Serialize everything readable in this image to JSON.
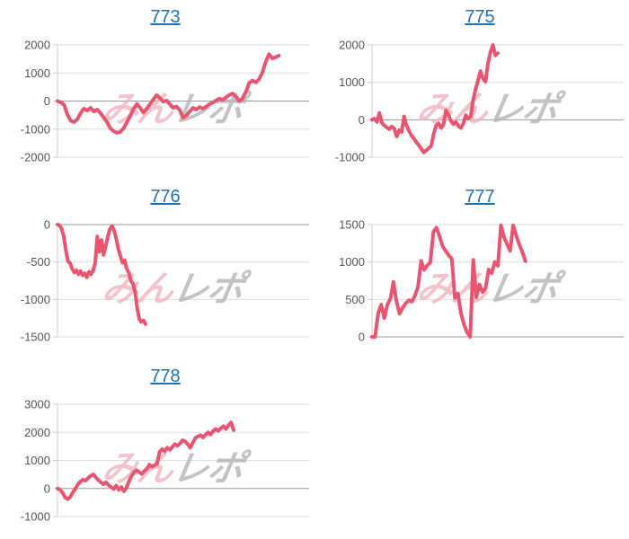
{
  "watermark": {
    "pink": "みん",
    "gray": "レポ"
  },
  "colors": {
    "background": "#ffffff",
    "line": "#e85570",
    "link": "#2271b3",
    "grid": "#dddddd",
    "baseline": "#999999",
    "axis": "#cccccc",
    "label": "#555555",
    "watermark_pink": "#f2b3bd",
    "watermark_gray": "#b5b5b5"
  },
  "chart_data": [
    {
      "type": "line",
      "title": "773",
      "ylim": [
        -2000,
        2000
      ],
      "yticks": [
        2000,
        1000,
        0,
        -1000,
        -2000
      ],
      "xlabel": "",
      "ylabel": "",
      "grid": "horizontal",
      "legend": "none",
      "x_extent": 0.88,
      "values": [
        0,
        -50,
        -130,
        -480,
        -700,
        -750,
        -645,
        -430,
        -270,
        -340,
        -240,
        -375,
        -300,
        -430,
        -590,
        -750,
        -970,
        -1075,
        -1130,
        -1100,
        -970,
        -750,
        -540,
        -270,
        -110,
        -240,
        -410,
        -270,
        -110,
        55,
        215,
        110,
        -20,
        20,
        -110,
        -240,
        -195,
        -320,
        -590,
        -515,
        -375,
        -240,
        -300,
        -215,
        -270,
        -195,
        -110,
        -55,
        20,
        85,
        45,
        130,
        215,
        270,
        160,
        0,
        85,
        320,
        645,
        730,
        665,
        775,
        1020,
        1400,
        1670,
        1520,
        1560,
        1620
      ]
    },
    {
      "type": "line",
      "title": "775",
      "ylim": [
        -1000,
        2000
      ],
      "yticks": [
        2000,
        1000,
        0,
        -1000
      ],
      "xlabel": "",
      "ylabel": "",
      "grid": "horizontal",
      "legend": "none",
      "x_extent": 0.5,
      "values": [
        0,
        30,
        -60,
        180,
        -80,
        -150,
        -200,
        -250,
        -180,
        -230,
        -450,
        -280,
        -330,
        90,
        -150,
        -300,
        -420,
        -500,
        -600,
        -680,
        -780,
        -870,
        -820,
        -760,
        -700,
        -380,
        -150,
        -100,
        -220,
        -120,
        250,
        130,
        -30,
        -120,
        -60,
        -160,
        -220,
        -100,
        120,
        30,
        80,
        520,
        820,
        1050,
        1300,
        1100,
        1020,
        1500,
        1800,
        2000,
        1720,
        1780
      ]
    },
    {
      "type": "line",
      "title": "776",
      "ylim": [
        -1500,
        0
      ],
      "yticks": [
        0,
        -500,
        -1000,
        -1500
      ],
      "xlabel": "",
      "ylabel": "",
      "grid": "horizontal",
      "legend": "none",
      "x_extent": 0.35,
      "values": [
        0,
        -10,
        -60,
        -160,
        -345,
        -490,
        -515,
        -590,
        -640,
        -610,
        -665,
        -620,
        -680,
        -650,
        -705,
        -630,
        -665,
        -610,
        -510,
        -160,
        -365,
        -205,
        -405,
        -285,
        -160,
        -60,
        -20,
        -80,
        -185,
        -325,
        -420,
        -510,
        -475,
        -590,
        -640,
        -750,
        -790,
        -895,
        -1120,
        -1260,
        -1300,
        -1280,
        -1330
      ]
    },
    {
      "type": "line",
      "title": "777",
      "ylim": [
        0,
        1500
      ],
      "yticks": [
        1500,
        1000,
        500,
        0
      ],
      "xlabel": "",
      "ylabel": "",
      "grid": "horizontal",
      "legend": "none",
      "x_extent": 0.61,
      "values": [
        0,
        0,
        310,
        430,
        250,
        430,
        510,
        735,
        470,
        310,
        390,
        450,
        490,
        470,
        550,
        670,
        1015,
        895,
        955,
        995,
        1400,
        1460,
        1340,
        1210,
        1150,
        1090,
        1040,
        520,
        580,
        310,
        160,
        60,
        0,
        1030,
        530,
        700,
        600,
        650,
        900,
        850,
        1000,
        950,
        1490,
        1330,
        1240,
        1150,
        1490,
        1350,
        1230,
        1130,
        1010
      ]
    },
    {
      "type": "line",
      "title": "778",
      "ylim": [
        -1000,
        3000
      ],
      "yticks": [
        3000,
        2000,
        1000,
        0,
        -1000
      ],
      "xlabel": "",
      "ylabel": "",
      "grid": "horizontal",
      "legend": "none",
      "x_extent": 0.7,
      "values": [
        0,
        -50,
        -150,
        -320,
        -380,
        -300,
        -150,
        0,
        150,
        250,
        320,
        280,
        370,
        450,
        500,
        400,
        300,
        220,
        150,
        220,
        120,
        50,
        -20,
        100,
        -50,
        50,
        -100,
        20,
        250,
        450,
        580,
        650,
        580,
        520,
        620,
        700,
        850,
        780,
        820,
        880,
        1300,
        1400,
        1320,
        1450,
        1380,
        1480,
        1580,
        1520,
        1600,
        1720,
        1680,
        1580,
        1450,
        1620,
        1800,
        1850,
        1900,
        1820,
        1920,
        2000,
        1920,
        2050,
        2120,
        2050,
        2150,
        2220,
        2120,
        2250,
        2350,
        2080
      ]
    }
  ]
}
